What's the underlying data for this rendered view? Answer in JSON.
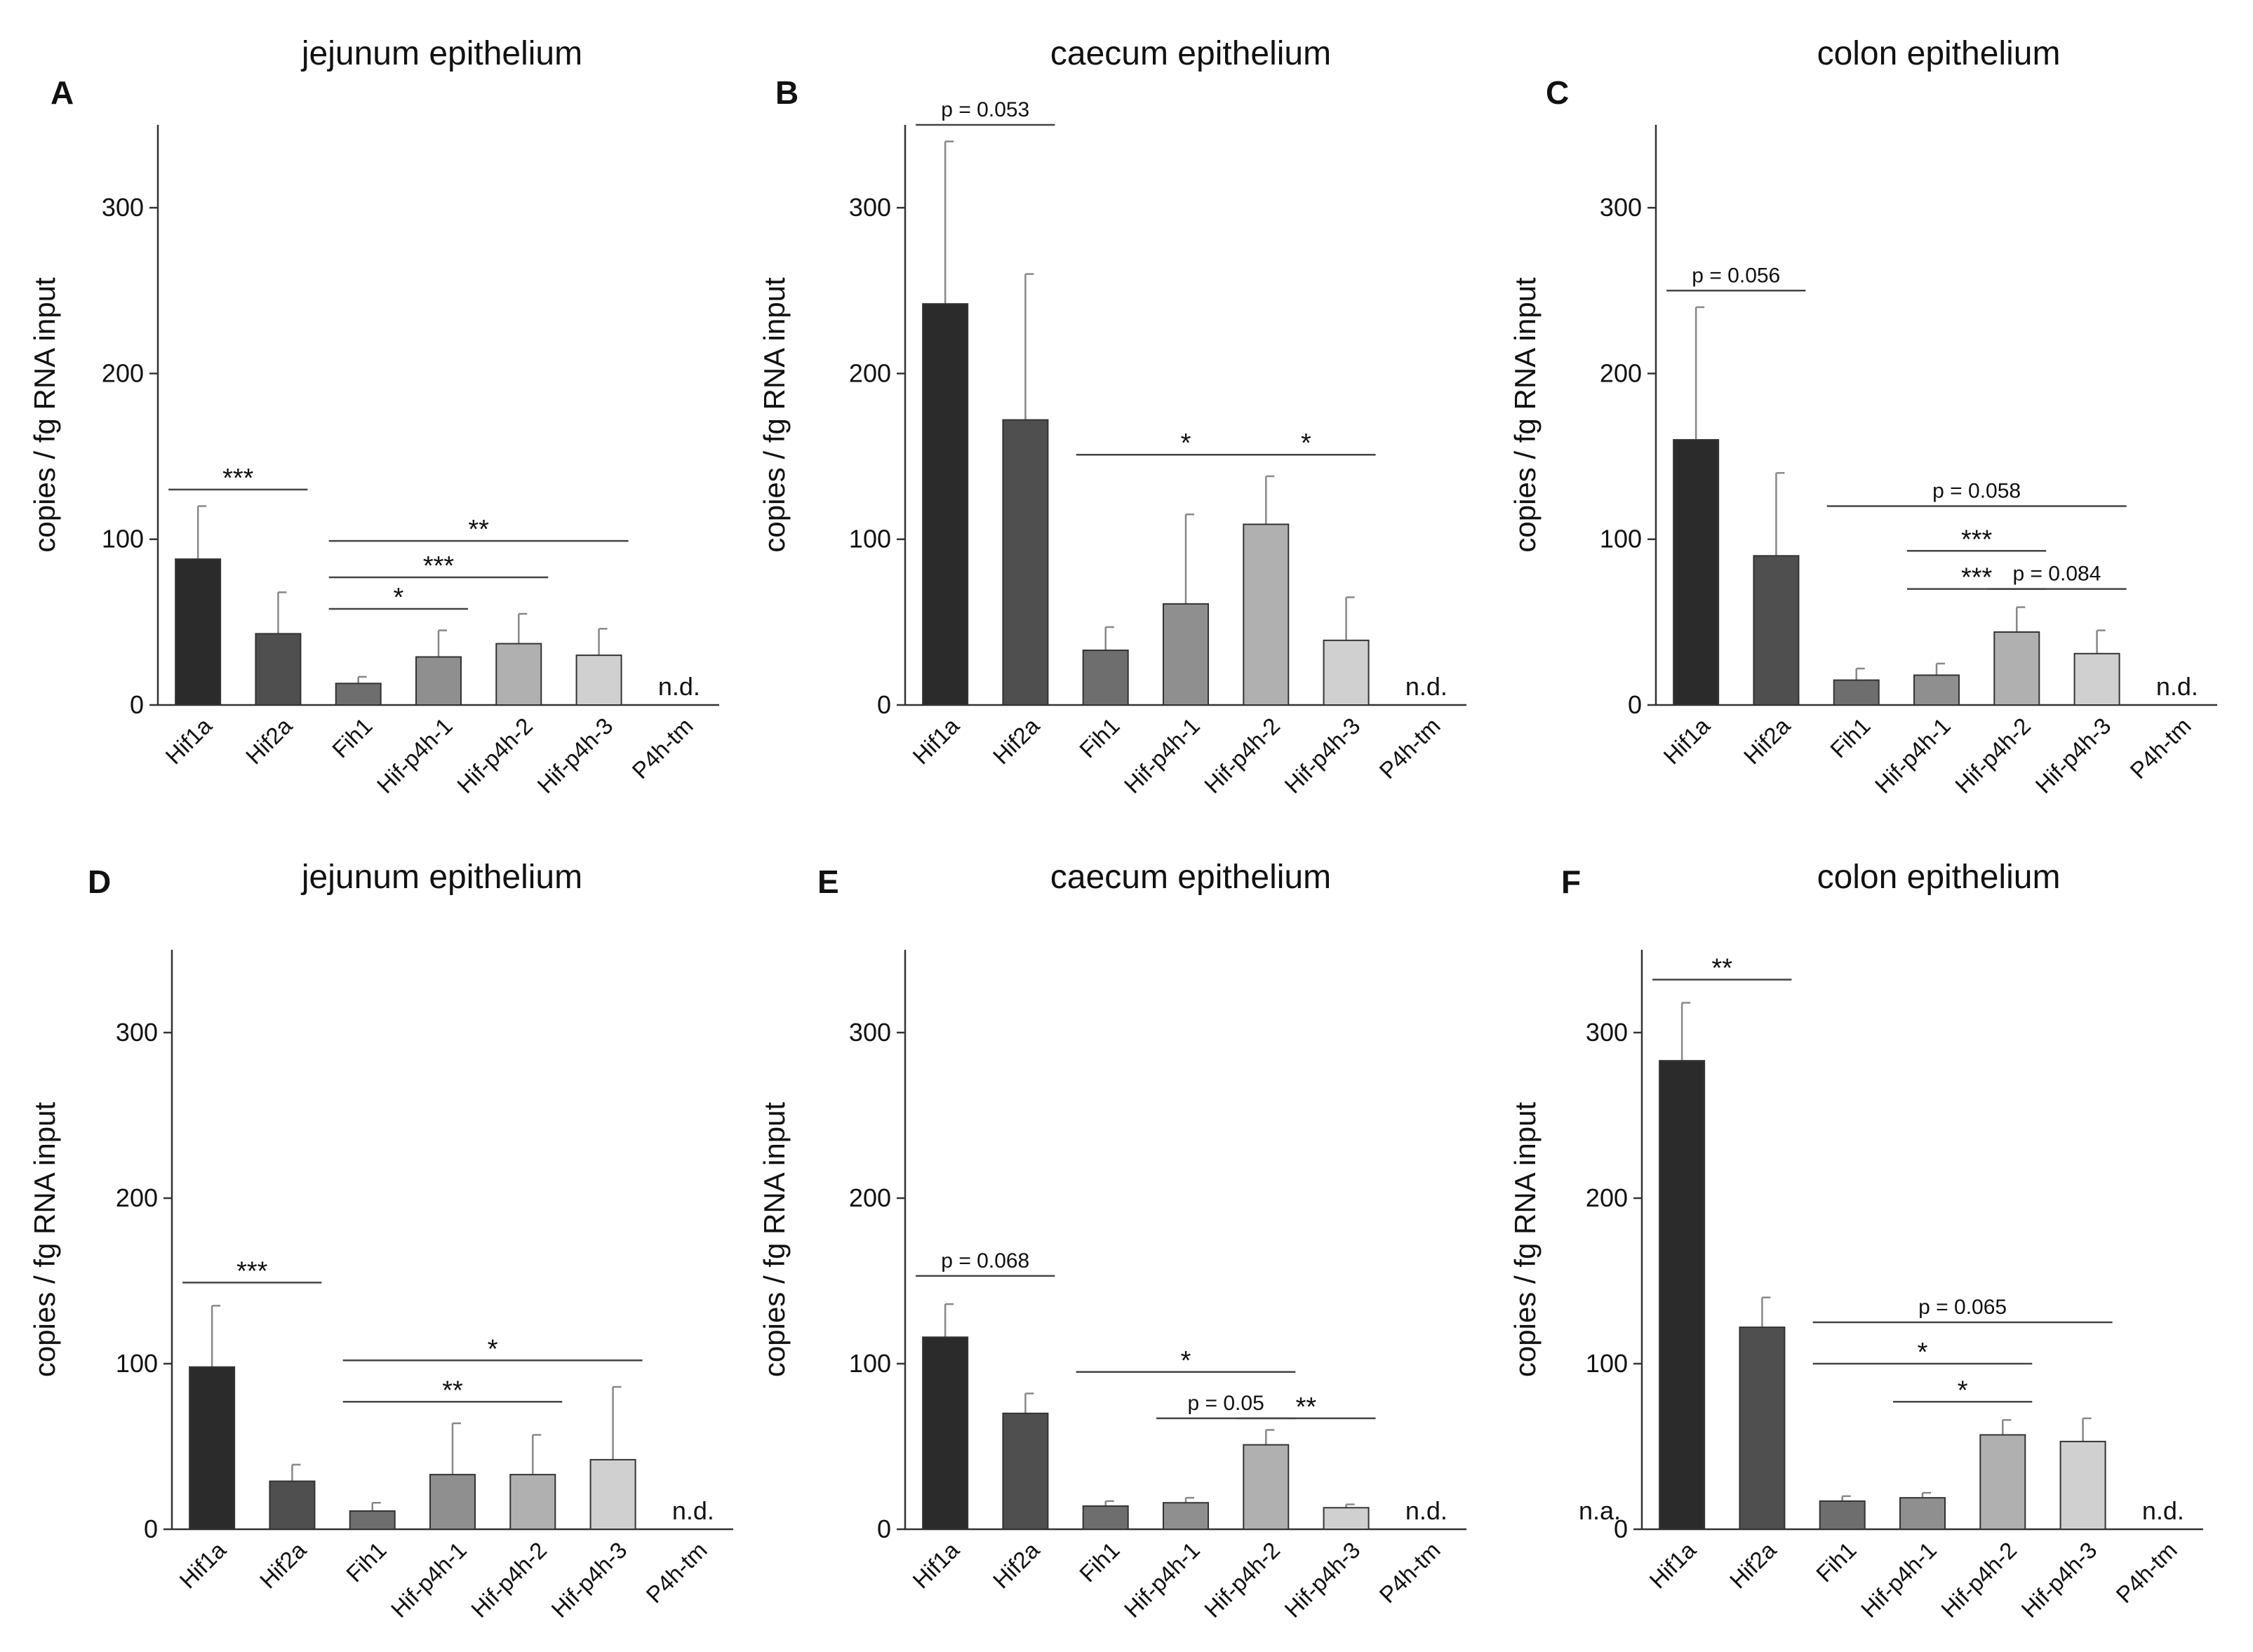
{
  "chart_data": [
    {
      "type": "bar",
      "panel_label": "A",
      "title": "jejunum epithelium",
      "ylabel": "copies / fg RNA input",
      "ylim": [
        0,
        350
      ],
      "yticks": [
        0,
        100,
        200,
        300
      ],
      "categories": [
        "Hif1a",
        "Hif2a",
        "Fih1",
        "Hif-p4h-1",
        "Hif-p4h-2",
        "Hif-p4h-3",
        "P4h-tm"
      ],
      "values": [
        88,
        43,
        13,
        29,
        37,
        30,
        null
      ],
      "errors": [
        32,
        25,
        4,
        16,
        18,
        16,
        null
      ],
      "colors": [
        "#2b2b2b",
        "#4f4f4f",
        "#6e6e6e",
        "#8f8f8f",
        "#b0b0b0",
        "#d0d0d0",
        "#e8e8e8"
      ],
      "value_labels": [
        "",
        "",
        "",
        "",
        "",
        "",
        "n.d."
      ],
      "annotations": [
        {
          "text": "***",
          "from": 0,
          "to": 1,
          "y": 130
        },
        {
          "text": "**",
          "from": 2,
          "to": 5,
          "y": 99
        },
        {
          "text": "***",
          "from": 2,
          "to": 4,
          "y": 77
        },
        {
          "text": "*",
          "from": 2,
          "to": 3,
          "y": 58
        }
      ]
    },
    {
      "type": "bar",
      "panel_label": "B",
      "title": "caecum epithelium",
      "ylabel": "copies / fg RNA input",
      "ylim": [
        0,
        350
      ],
      "yticks": [
        0,
        100,
        200,
        300
      ],
      "categories": [
        "Hif1a",
        "Hif2a",
        "Fih1",
        "Hif-p4h-1",
        "Hif-p4h-2",
        "Hif-p4h-3",
        "P4h-tm"
      ],
      "values": [
        242,
        172,
        33,
        61,
        109,
        39,
        null
      ],
      "errors": [
        98,
        88,
        14,
        54,
        29,
        26,
        null
      ],
      "colors": [
        "#2b2b2b",
        "#4f4f4f",
        "#6e6e6e",
        "#8f8f8f",
        "#b0b0b0",
        "#d0d0d0",
        "#e8e8e8"
      ],
      "value_labels": [
        "",
        "",
        "",
        "",
        "",
        "",
        "n.d."
      ],
      "annotations": [
        {
          "text": "p = 0.053",
          "from": 0,
          "to": 1,
          "y": 350
        },
        {
          "text": "*",
          "from": 2,
          "to": 4,
          "y": 151
        },
        {
          "text": "*",
          "from": 4,
          "to": 5,
          "y": 151
        }
      ]
    },
    {
      "type": "bar",
      "panel_label": "C",
      "title": "colon epithelium",
      "ylabel": "copies / fg RNA input",
      "ylim": [
        0,
        350
      ],
      "yticks": [
        0,
        100,
        200,
        300
      ],
      "categories": [
        "Hif1a",
        "Hif2a",
        "Fih1",
        "Hif-p4h-1",
        "Hif-p4h-2",
        "Hif-p4h-3",
        "P4h-tm"
      ],
      "values": [
        160,
        90,
        15,
        18,
        44,
        31,
        null
      ],
      "errors": [
        80,
        50,
        7,
        7,
        15,
        14,
        null
      ],
      "colors": [
        "#2b2b2b",
        "#4f4f4f",
        "#6e6e6e",
        "#8f8f8f",
        "#b0b0b0",
        "#d0d0d0",
        "#e8e8e8"
      ],
      "value_labels": [
        "",
        "",
        "",
        "",
        "",
        "",
        "n.d."
      ],
      "annotations": [
        {
          "text": "p = 0.056",
          "from": 0,
          "to": 1,
          "y": 250
        },
        {
          "text": "p = 0.058",
          "from": 2,
          "to": 5,
          "y": 120
        },
        {
          "text": "***",
          "from": 3,
          "to": 4,
          "y": 93
        },
        {
          "text": "***",
          "from": 3,
          "to": 4,
          "y": 70
        },
        {
          "text": "p = 0.084",
          "from": 4,
          "to": 5,
          "y": 70
        }
      ]
    },
    {
      "type": "bar",
      "panel_label": "D",
      "title": "jejunum epithelium",
      "ylabel": "copies / fg RNA input",
      "ylim": [
        0,
        350
      ],
      "yticks": [
        0,
        100,
        200,
        300
      ],
      "categories": [
        "Hif1a",
        "Hif2a",
        "Fih1",
        "Hif-p4h-1",
        "Hif-p4h-2",
        "Hif-p4h-3",
        "P4h-tm"
      ],
      "values": [
        98,
        29,
        11,
        33,
        33,
        42,
        null
      ],
      "errors": [
        37,
        10,
        5,
        31,
        24,
        44,
        null
      ],
      "colors": [
        "#2b2b2b",
        "#4f4f4f",
        "#6e6e6e",
        "#8f8f8f",
        "#b0b0b0",
        "#d0d0d0",
        "#e8e8e8"
      ],
      "value_labels": [
        "",
        "",
        "",
        "",
        "",
        "",
        "n.d."
      ],
      "annotations": [
        {
          "text": "***",
          "from": 0,
          "to": 1,
          "y": 149
        },
        {
          "text": "*",
          "from": 2,
          "to": 5,
          "y": 102
        },
        {
          "text": "**",
          "from": 2,
          "to": 4,
          "y": 77
        }
      ]
    },
    {
      "type": "bar",
      "panel_label": "E",
      "title": "caecum epithelium",
      "ylabel": "copies / fg RNA input",
      "ylim": [
        0,
        350
      ],
      "yticks": [
        0,
        100,
        200,
        300
      ],
      "categories": [
        "Hif1a",
        "Hif2a",
        "Fih1",
        "Hif-p4h-1",
        "Hif-p4h-2",
        "Hif-p4h-3",
        "P4h-tm"
      ],
      "values": [
        116,
        70,
        14,
        16,
        51,
        13,
        null
      ],
      "errors": [
        20,
        12,
        3,
        3,
        9,
        2,
        null
      ],
      "colors": [
        "#2b2b2b",
        "#4f4f4f",
        "#6e6e6e",
        "#8f8f8f",
        "#b0b0b0",
        "#d0d0d0",
        "#e8e8e8"
      ],
      "value_labels": [
        "",
        "",
        "",
        "",
        "",
        "",
        "n.d."
      ],
      "annotations": [
        {
          "text": "p = 0.068",
          "from": 0,
          "to": 1,
          "y": 153
        },
        {
          "text": "*",
          "from": 2,
          "to": 4,
          "y": 95
        },
        {
          "text": "p = 0.05",
          "from": 3,
          "to": 4,
          "y": 67
        },
        {
          "text": "**",
          "from": 4,
          "to": 5,
          "y": 67
        }
      ]
    },
    {
      "type": "bar",
      "panel_label": "F",
      "title": "colon epithelium",
      "ylabel": "copies / fg RNA input",
      "ylim": [
        0,
        350
      ],
      "yticks": [
        0,
        100,
        200,
        300
      ],
      "categories": [
        "Hif1a",
        "Hif2a",
        "Fih1",
        "Hif-p4h-1",
        "Hif-p4h-2",
        "Hif-p4h-3",
        "P4h-tm"
      ],
      "values": [
        283,
        122,
        17,
        19,
        57,
        53,
        null
      ],
      "errors": [
        35,
        18,
        3,
        3,
        9,
        14,
        null
      ],
      "colors": [
        "#2b2b2b",
        "#4f4f4f",
        "#6e6e6e",
        "#8f8f8f",
        "#b0b0b0",
        "#d0d0d0",
        "#e8e8e8"
      ],
      "value_labels": [
        "",
        "",
        "",
        "",
        "",
        "",
        "n.d."
      ],
      "outside_label": "n.a.",
      "annotations": [
        {
          "text": "**",
          "from": 0,
          "to": 1,
          "y": 332
        },
        {
          "text": "p = 0.065",
          "from": 2,
          "to": 5,
          "y": 125
        },
        {
          "text": "*",
          "from": 2,
          "to": 4,
          "y": 100
        },
        {
          "text": "*",
          "from": 3,
          "to": 4,
          "y": 77
        }
      ]
    }
  ]
}
